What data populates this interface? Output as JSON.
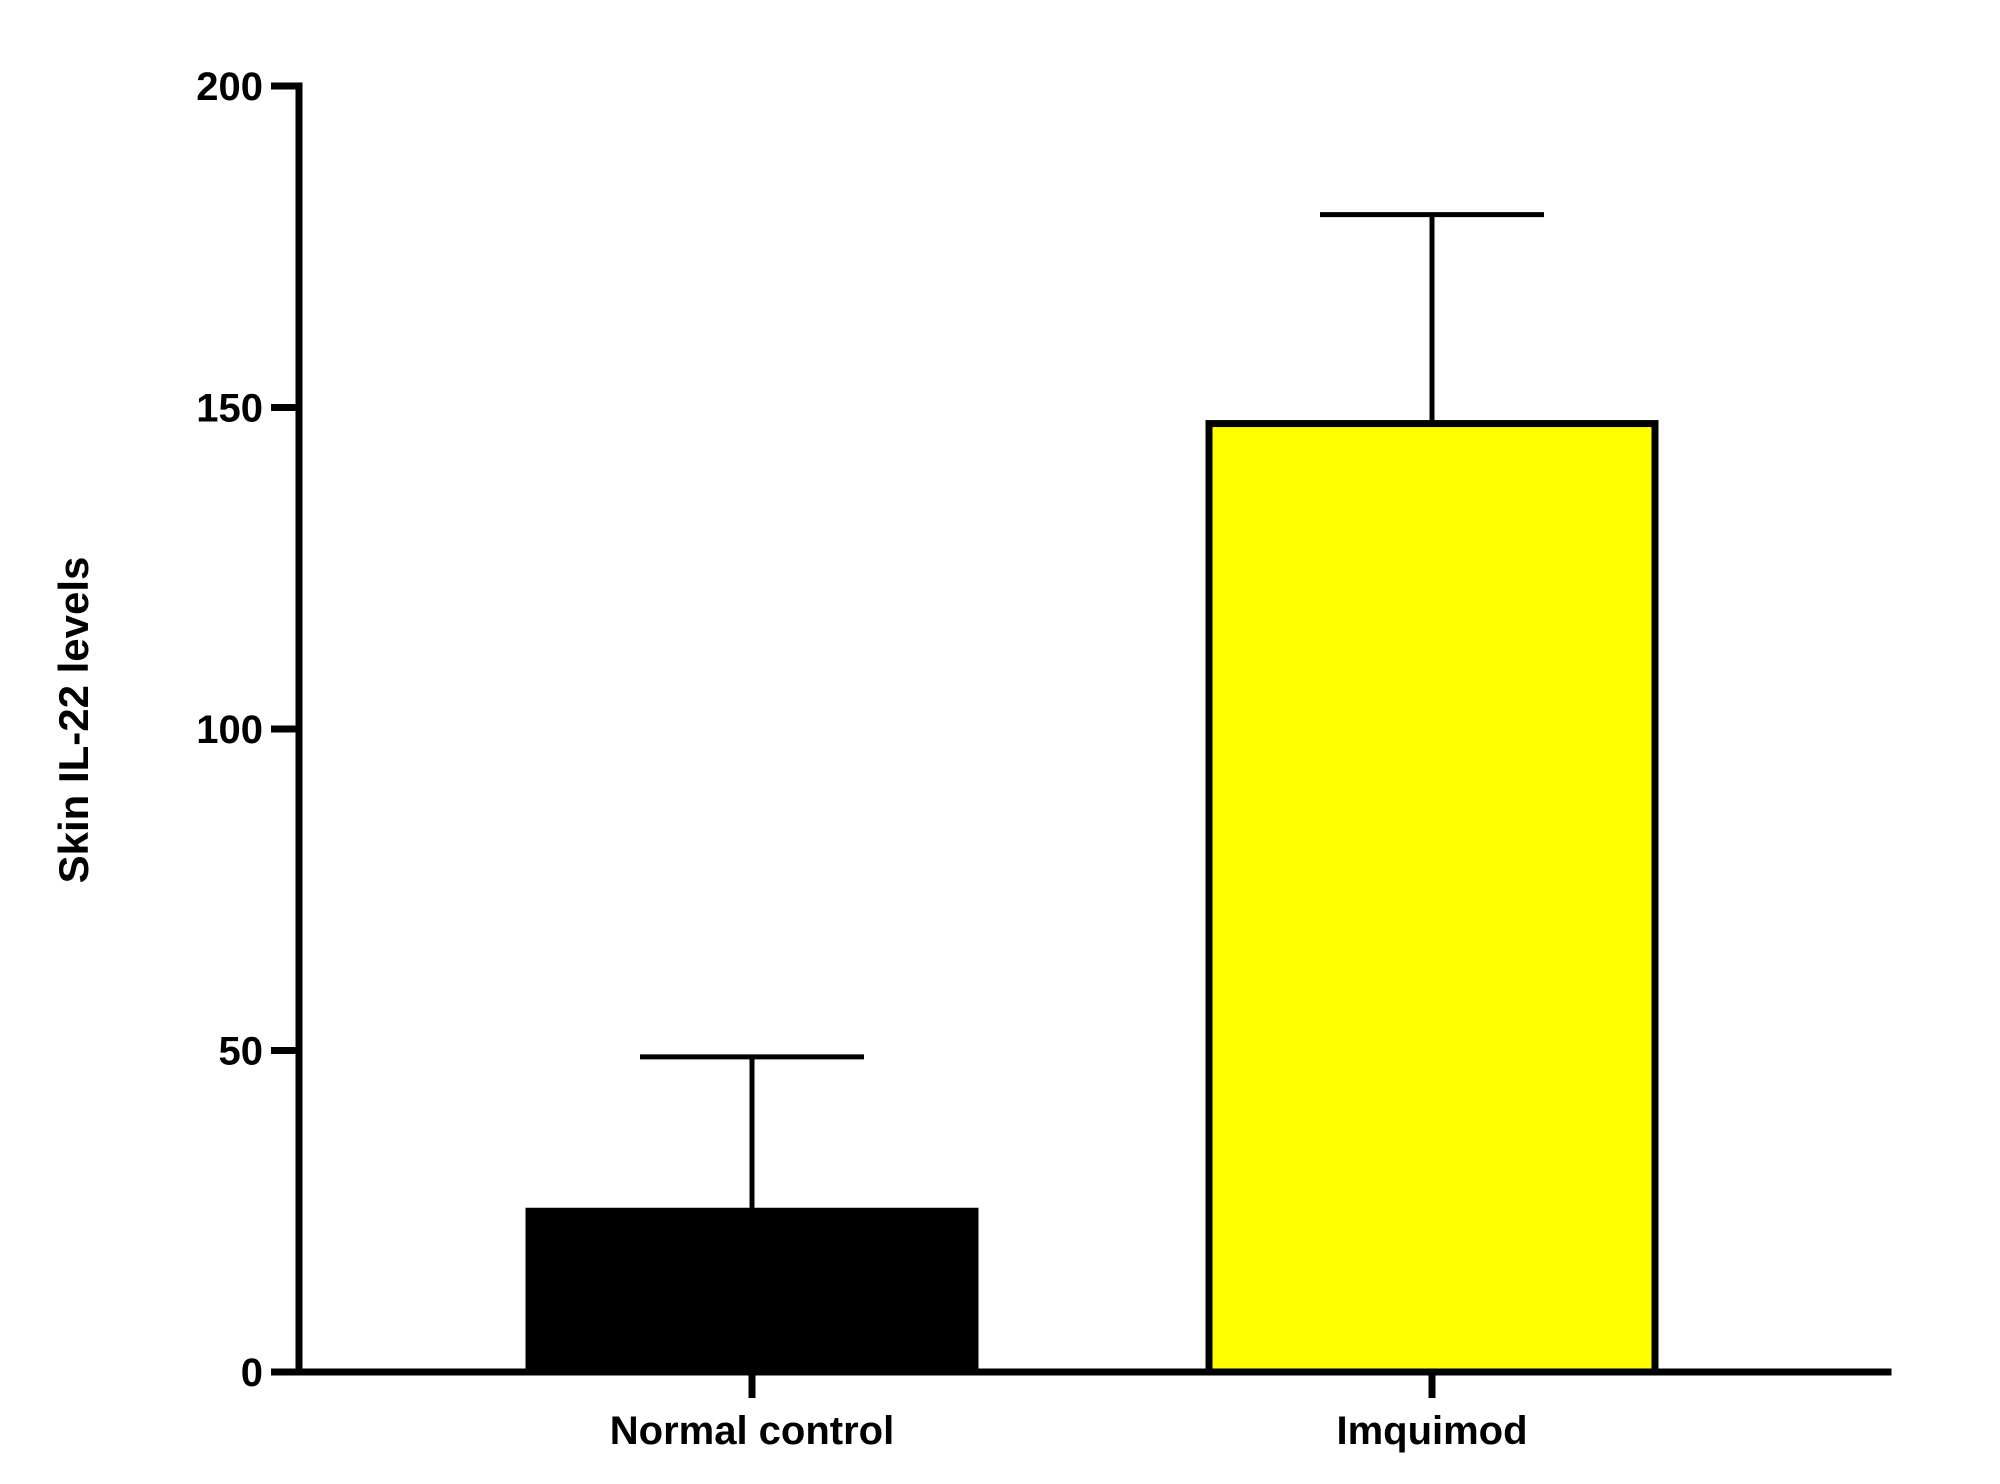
{
  "chart_data": {
    "type": "bar",
    "categories": [
      "Normal control",
      "Imquimod"
    ],
    "values": [
      25,
      147.5
    ],
    "error_upper": [
      49,
      180
    ],
    "bar_colors": [
      "#000000",
      "#ffff00"
    ],
    "ylabel": "Skin IL-22 levels",
    "xlabel": "",
    "ylim": [
      0,
      200
    ],
    "yticks": [
      0,
      50,
      100,
      150,
      200
    ],
    "ytick_labels": [
      "0",
      "50",
      "100",
      "150",
      "200"
    ],
    "grid": false,
    "legend": "none"
  }
}
